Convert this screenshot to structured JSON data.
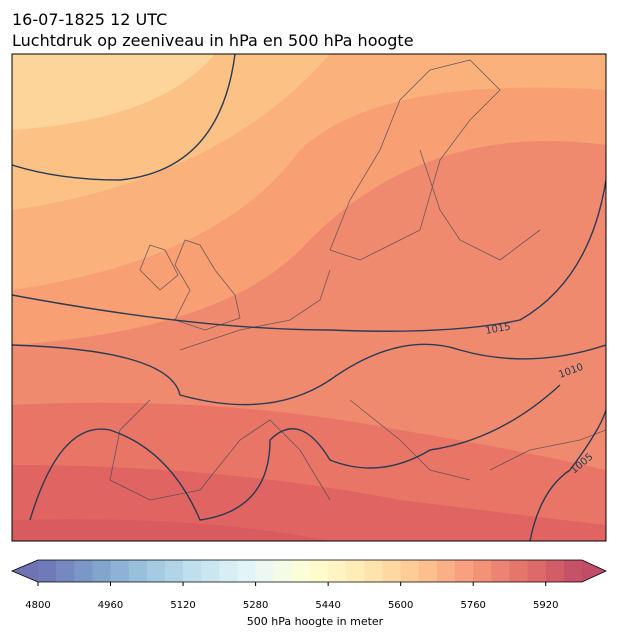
{
  "header": {
    "title": "16-07-1825 12 UTC",
    "subtitle": "Luchtdruk op zeeniveau in hPa en 500 hPa hoogte"
  },
  "map": {
    "isobar_labels": [
      1015,
      1010,
      1005
    ]
  },
  "colorbar": {
    "label": "500 hPa hoogte in meter",
    "range": [
      4800,
      6000
    ],
    "step": 40,
    "ticks": [
      4800,
      4960,
      5120,
      5280,
      5440,
      5600,
      5760,
      5920
    ],
    "colormap": "RdYlBu_r"
  }
}
